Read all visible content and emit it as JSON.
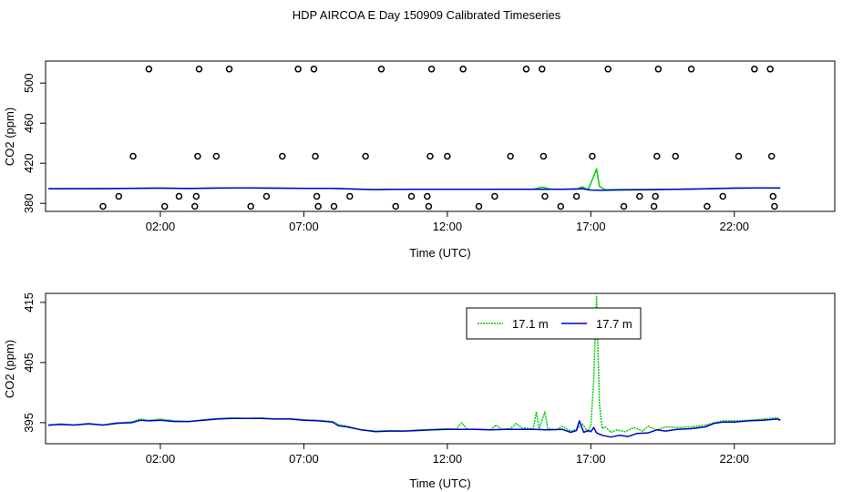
{
  "title": "HDP AIRCOA E  Day 150909  Calibrated Timeseries",
  "colors": {
    "series_a": "#00cc00",
    "series_b": "#0000cc",
    "axis": "#000000",
    "background": "#ffffff"
  },
  "chart_data": [
    {
      "type": "scatter",
      "xlabel": "Time (UTC)",
      "ylabel": "CO2 (ppm)",
      "xlim": [
        -2.0,
        25.5
      ],
      "ylim": [
        372,
        522
      ],
      "xticks": [
        2,
        7,
        12,
        17,
        22
      ],
      "xtick_labels": [
        "02:00",
        "07:00",
        "12:00",
        "17:00",
        "22:00"
      ],
      "yticks": [
        380,
        420,
        460,
        500
      ],
      "yticks_labels": [
        "380",
        "420",
        "460",
        "500"
      ],
      "points": [
        {
          "x": 0.0,
          "y": 377
        },
        {
          "x": 0.55,
          "y": 387
        },
        {
          "x": 1.05,
          "y": 427
        },
        {
          "x": 1.6,
          "y": 514
        },
        {
          "x": 2.15,
          "y": 377
        },
        {
          "x": 2.65,
          "y": 387
        },
        {
          "x": 3.2,
          "y": 377
        },
        {
          "x": 3.25,
          "y": 387
        },
        {
          "x": 3.3,
          "y": 427
        },
        {
          "x": 3.35,
          "y": 514
        },
        {
          "x": 3.95,
          "y": 427
        },
        {
          "x": 4.4,
          "y": 514
        },
        {
          "x": 5.15,
          "y": 377
        },
        {
          "x": 5.7,
          "y": 387
        },
        {
          "x": 6.25,
          "y": 427
        },
        {
          "x": 6.8,
          "y": 514
        },
        {
          "x": 7.35,
          "y": 514
        },
        {
          "x": 7.4,
          "y": 427
        },
        {
          "x": 7.45,
          "y": 387
        },
        {
          "x": 7.5,
          "y": 377
        },
        {
          "x": 8.05,
          "y": 377
        },
        {
          "x": 8.6,
          "y": 387
        },
        {
          "x": 9.15,
          "y": 427
        },
        {
          "x": 9.7,
          "y": 514
        },
        {
          "x": 10.2,
          "y": 377
        },
        {
          "x": 10.75,
          "y": 387
        },
        {
          "x": 11.3,
          "y": 387
        },
        {
          "x": 11.35,
          "y": 377
        },
        {
          "x": 11.4,
          "y": 427
        },
        {
          "x": 11.45,
          "y": 514
        },
        {
          "x": 12.0,
          "y": 427
        },
        {
          "x": 12.55,
          "y": 514
        },
        {
          "x": 13.1,
          "y": 377
        },
        {
          "x": 13.65,
          "y": 387
        },
        {
          "x": 14.2,
          "y": 427
        },
        {
          "x": 14.75,
          "y": 514
        },
        {
          "x": 15.3,
          "y": 514
        },
        {
          "x": 15.35,
          "y": 427
        },
        {
          "x": 15.4,
          "y": 387
        },
        {
          "x": 15.95,
          "y": 377
        },
        {
          "x": 16.5,
          "y": 387
        },
        {
          "x": 17.05,
          "y": 427
        },
        {
          "x": 17.6,
          "y": 514
        },
        {
          "x": 18.15,
          "y": 377
        },
        {
          "x": 18.7,
          "y": 387
        },
        {
          "x": 19.2,
          "y": 377
        },
        {
          "x": 19.25,
          "y": 387
        },
        {
          "x": 19.3,
          "y": 427
        },
        {
          "x": 19.35,
          "y": 514
        },
        {
          "x": 19.95,
          "y": 427
        },
        {
          "x": 20.5,
          "y": 514
        },
        {
          "x": 21.05,
          "y": 377
        },
        {
          "x": 21.6,
          "y": 387
        },
        {
          "x": 22.15,
          "y": 427
        },
        {
          "x": 22.7,
          "y": 514
        },
        {
          "x": 23.25,
          "y": 514
        },
        {
          "x": 23.3,
          "y": 427
        },
        {
          "x": 23.35,
          "y": 387
        },
        {
          "x": 23.4,
          "y": 377
        }
      ],
      "series": [
        {
          "values": [
            [
              -1.9,
              394.6
            ],
            [
              0.0,
              394.7
            ],
            [
              2.0,
              395.3
            ],
            [
              3.0,
              394.8
            ],
            [
              4.0,
              395.3
            ],
            [
              5.0,
              395.5
            ],
            [
              6.0,
              395.2
            ],
            [
              7.0,
              395.0
            ],
            [
              8.0,
              394.9
            ],
            [
              9.0,
              394.2
            ],
            [
              9.5,
              393.8
            ],
            [
              10.0,
              394.0
            ],
            [
              11.0,
              394.1
            ],
            [
              12.0,
              394.0
            ],
            [
              13.0,
              394.1
            ],
            [
              14.0,
              394.2
            ],
            [
              15.0,
              394.2
            ],
            [
              15.3,
              396.2
            ],
            [
              15.6,
              394.3
            ],
            [
              16.5,
              394.0
            ],
            [
              16.7,
              396.5
            ],
            [
              16.9,
              393.5
            ],
            [
              17.1,
              407.0
            ],
            [
              17.2,
              414.5
            ],
            [
              17.3,
              397.0
            ],
            [
              17.5,
              393.5
            ],
            [
              18.0,
              393.8
            ],
            [
              19.0,
              393.9
            ],
            [
              20.0,
              394.2
            ],
            [
              20.5,
              394.3
            ],
            [
              21.0,
              394.6
            ],
            [
              22.0,
              395.3
            ],
            [
              23.0,
              395.5
            ],
            [
              23.6,
              395.3
            ]
          ],
          "color": "#00cc00"
        },
        {
          "values": [
            [
              -1.9,
              394.6
            ],
            [
              0.0,
              394.7
            ],
            [
              2.0,
              395.2
            ],
            [
              3.0,
              394.8
            ],
            [
              4.0,
              395.3
            ],
            [
              5.0,
              395.4
            ],
            [
              6.0,
              395.2
            ],
            [
              7.0,
              395.0
            ],
            [
              8.0,
              394.9
            ],
            [
              9.0,
              394.1
            ],
            [
              9.5,
              393.7
            ],
            [
              10.0,
              393.9
            ],
            [
              11.0,
              394.0
            ],
            [
              12.0,
              394.0
            ],
            [
              13.0,
              394.0
            ],
            [
              14.0,
              394.1
            ],
            [
              15.0,
              394.1
            ],
            [
              16.0,
              394.0
            ],
            [
              16.7,
              394.6
            ],
            [
              17.0,
              393.3
            ],
            [
              17.4,
              393.0
            ],
            [
              18.0,
              393.4
            ],
            [
              19.0,
              393.6
            ],
            [
              20.0,
              394.1
            ],
            [
              21.0,
              394.5
            ],
            [
              22.0,
              395.2
            ],
            [
              23.0,
              395.4
            ],
            [
              23.6,
              395.3
            ]
          ],
          "color": "#0000cc"
        }
      ]
    },
    {
      "type": "line",
      "xlabel": "Time (UTC)",
      "ylabel": "CO2 (ppm)",
      "xlim": [
        -2.0,
        25.5
      ],
      "ylim": [
        391.5,
        416.5
      ],
      "xticks": [
        2,
        7,
        12,
        17,
        22
      ],
      "xtick_labels": [
        "02:00",
        "07:00",
        "12:00",
        "17:00",
        "22:00"
      ],
      "yticks": [
        395,
        405,
        415
      ],
      "yticks_labels": [
        "395",
        "405",
        "415"
      ],
      "legend": {
        "position": "top-center",
        "entries": [
          "17.1 m",
          "17.7 m"
        ]
      },
      "series": [
        {
          "name": "17.1 m",
          "color": "#00cc00",
          "values": [
            [
              -1.9,
              394.5
            ],
            [
              -1.5,
              394.8
            ],
            [
              -1.0,
              394.6
            ],
            [
              -0.5,
              394.9
            ],
            [
              0.0,
              394.6
            ],
            [
              0.5,
              395.0
            ],
            [
              1.0,
              395.1
            ],
            [
              1.3,
              395.6
            ],
            [
              1.6,
              395.4
            ],
            [
              2.0,
              395.6
            ],
            [
              2.5,
              395.3
            ],
            [
              3.0,
              395.2
            ],
            [
              3.5,
              395.5
            ],
            [
              4.0,
              395.7
            ],
            [
              4.5,
              395.8
            ],
            [
              5.0,
              395.7
            ],
            [
              5.5,
              395.8
            ],
            [
              6.0,
              395.6
            ],
            [
              6.5,
              395.7
            ],
            [
              7.0,
              395.5
            ],
            [
              7.5,
              395.4
            ],
            [
              8.0,
              395.2
            ],
            [
              8.2,
              394.7
            ],
            [
              8.5,
              394.4
            ],
            [
              9.0,
              393.8
            ],
            [
              9.5,
              393.6
            ],
            [
              10.0,
              393.7
            ],
            [
              10.5,
              393.6
            ],
            [
              11.0,
              393.8
            ],
            [
              11.5,
              393.9
            ],
            [
              12.0,
              394.0
            ],
            [
              12.3,
              393.9
            ],
            [
              12.5,
              395.0
            ],
            [
              12.7,
              393.9
            ],
            [
              13.0,
              393.9
            ],
            [
              13.5,
              393.8
            ],
            [
              13.7,
              394.6
            ],
            [
              13.9,
              393.9
            ],
            [
              14.2,
              394.0
            ],
            [
              14.4,
              394.9
            ],
            [
              14.6,
              394.1
            ],
            [
              15.0,
              394.0
            ],
            [
              15.1,
              396.8
            ],
            [
              15.2,
              394.0
            ],
            [
              15.4,
              396.8
            ],
            [
              15.5,
              394.0
            ],
            [
              15.8,
              393.8
            ],
            [
              16.0,
              394.4
            ],
            [
              16.3,
              393.6
            ],
            [
              16.5,
              393.9
            ],
            [
              16.7,
              394.8
            ],
            [
              16.9,
              393.5
            ],
            [
              17.0,
              394.5
            ],
            [
              17.1,
              402.0
            ],
            [
              17.2,
              416.0
            ],
            [
              17.3,
              398.0
            ],
            [
              17.4,
              394.0
            ],
            [
              17.5,
              394.3
            ],
            [
              17.7,
              393.4
            ],
            [
              17.9,
              393.8
            ],
            [
              18.2,
              393.5
            ],
            [
              18.5,
              394.2
            ],
            [
              18.8,
              393.6
            ],
            [
              19.0,
              394.4
            ],
            [
              19.3,
              393.8
            ],
            [
              19.6,
              394.3
            ],
            [
              20.0,
              394.2
            ],
            [
              20.5,
              394.3
            ],
            [
              21.0,
              394.6
            ],
            [
              21.3,
              395.0
            ],
            [
              21.6,
              395.3
            ],
            [
              22.0,
              395.3
            ],
            [
              22.5,
              395.4
            ],
            [
              23.0,
              395.6
            ],
            [
              23.5,
              395.8
            ],
            [
              23.6,
              395.5
            ]
          ]
        },
        {
          "name": "17.7 m",
          "color": "#0000cc",
          "values": [
            [
              -1.9,
              394.6
            ],
            [
              -1.5,
              394.7
            ],
            [
              -1.0,
              394.6
            ],
            [
              -0.5,
              394.8
            ],
            [
              0.0,
              394.6
            ],
            [
              0.5,
              394.9
            ],
            [
              1.0,
              395.0
            ],
            [
              1.3,
              395.4
            ],
            [
              1.6,
              395.3
            ],
            [
              2.0,
              395.4
            ],
            [
              2.5,
              395.2
            ],
            [
              3.0,
              395.2
            ],
            [
              3.5,
              395.4
            ],
            [
              4.0,
              395.6
            ],
            [
              4.5,
              395.7
            ],
            [
              5.0,
              395.7
            ],
            [
              5.5,
              395.7
            ],
            [
              6.0,
              395.6
            ],
            [
              6.5,
              395.6
            ],
            [
              7.0,
              395.4
            ],
            [
              7.5,
              395.3
            ],
            [
              8.0,
              395.1
            ],
            [
              8.2,
              394.5
            ],
            [
              8.5,
              394.3
            ],
            [
              9.0,
              393.8
            ],
            [
              9.5,
              393.5
            ],
            [
              10.0,
              393.6
            ],
            [
              10.5,
              393.6
            ],
            [
              11.0,
              393.7
            ],
            [
              11.5,
              393.8
            ],
            [
              12.0,
              393.9
            ],
            [
              12.5,
              393.9
            ],
            [
              13.0,
              393.9
            ],
            [
              13.5,
              393.8
            ],
            [
              14.0,
              393.9
            ],
            [
              14.5,
              393.9
            ],
            [
              15.0,
              393.9
            ],
            [
              15.5,
              393.8
            ],
            [
              16.0,
              393.9
            ],
            [
              16.3,
              393.4
            ],
            [
              16.5,
              393.7
            ],
            [
              16.6,
              395.3
            ],
            [
              16.75,
              393.4
            ],
            [
              16.9,
              393.7
            ],
            [
              17.0,
              393.5
            ],
            [
              17.1,
              394.2
            ],
            [
              17.2,
              393.3
            ],
            [
              17.4,
              392.9
            ],
            [
              17.7,
              392.6
            ],
            [
              18.0,
              392.9
            ],
            [
              18.3,
              392.7
            ],
            [
              18.6,
              393.2
            ],
            [
              19.0,
              393.3
            ],
            [
              19.3,
              393.8
            ],
            [
              19.6,
              393.6
            ],
            [
              20.0,
              393.9
            ],
            [
              20.5,
              394.0
            ],
            [
              21.0,
              394.3
            ],
            [
              21.3,
              394.9
            ],
            [
              21.6,
              395.1
            ],
            [
              22.0,
              395.1
            ],
            [
              22.5,
              395.3
            ],
            [
              23.0,
              395.4
            ],
            [
              23.5,
              395.6
            ],
            [
              23.6,
              395.4
            ]
          ]
        }
      ]
    }
  ]
}
